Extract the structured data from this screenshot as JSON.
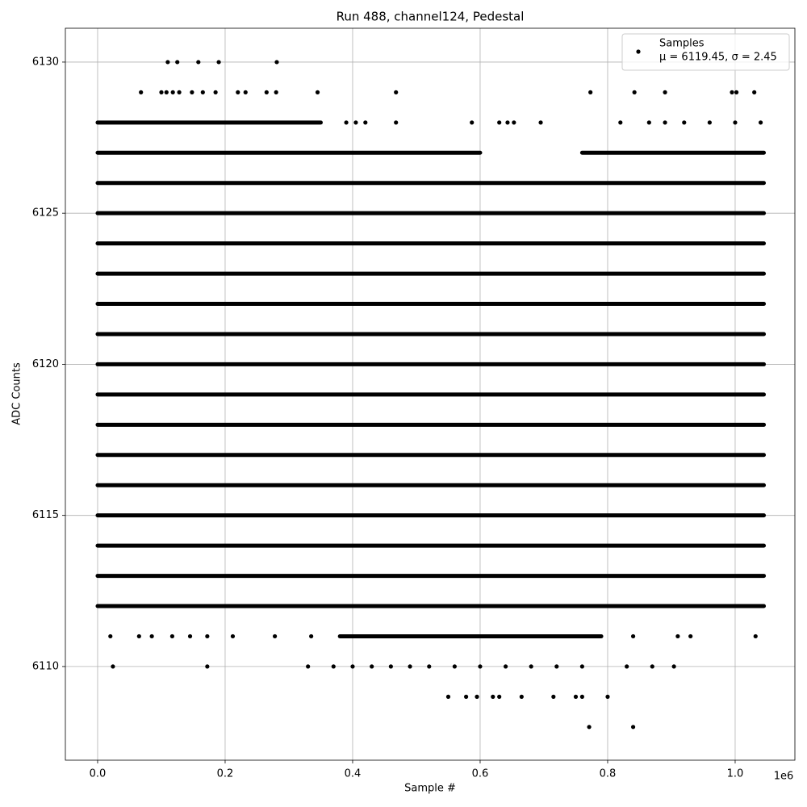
{
  "chart_data": {
    "type": "scatter",
    "title": "Run 488, channel124, Pedestal",
    "x_label": "Sample #",
    "y_label": "ADC Counts",
    "x_offset_label": "1e6",
    "xlim": [
      -50600,
      1093700
    ],
    "ylim": [
      6106.9,
      6131.12
    ],
    "xticks": [
      {
        "value": 0,
        "label": "0.0"
      },
      {
        "value": 200000,
        "label": "0.2"
      },
      {
        "value": 400000,
        "label": "0.4"
      },
      {
        "value": 600000,
        "label": "0.6"
      },
      {
        "value": 800000,
        "label": "0.8"
      },
      {
        "value": 1000000,
        "label": "1.0"
      }
    ],
    "yticks": [
      6110,
      6115,
      6120,
      6125,
      6130
    ],
    "grid": true,
    "legend": "upper right",
    "series": [
      {
        "name": "Samples",
        "legend_note": "μ = 6119.45, σ = 2.45",
        "color": "#000000",
        "row_segments": [
          {
            "y": 6112,
            "x": [
              0,
              1045000
            ]
          },
          {
            "y": 6113,
            "x": [
              0,
              1045000
            ]
          },
          {
            "y": 6114,
            "x": [
              0,
              1045000
            ]
          },
          {
            "y": 6115,
            "x": [
              0,
              1045000
            ]
          },
          {
            "y": 6116,
            "x": [
              0,
              1045000
            ]
          },
          {
            "y": 6117,
            "x": [
              0,
              1045000
            ]
          },
          {
            "y": 6118,
            "x": [
              0,
              1045000
            ]
          },
          {
            "y": 6119,
            "x": [
              0,
              1045000
            ]
          },
          {
            "y": 6120,
            "x": [
              0,
              1045000
            ]
          },
          {
            "y": 6121,
            "x": [
              0,
              1045000
            ]
          },
          {
            "y": 6122,
            "x": [
              0,
              1045000
            ]
          },
          {
            "y": 6123,
            "x": [
              0,
              1045000
            ]
          },
          {
            "y": 6124,
            "x": [
              0,
              1045000
            ]
          },
          {
            "y": 6125,
            "x": [
              0,
              1045000
            ]
          },
          {
            "y": 6126,
            "x": [
              0,
              1045000
            ]
          },
          {
            "y": 6127,
            "x": [
              0,
              600000
            ]
          },
          {
            "y": 6127,
            "x": [
              760000,
              1045000
            ]
          },
          {
            "y": 6128,
            "x": [
              0,
              350000
            ]
          },
          {
            "y": 6111,
            "x": [
              380000,
              790000
            ]
          }
        ],
        "x": [
          110000,
          125000,
          158000,
          190000,
          281000,
          68000,
          100000,
          108000,
          118000,
          128000,
          148000,
          165000,
          185000,
          220000,
          232000,
          265000,
          280000,
          345000,
          468000,
          773000,
          842000,
          890000,
          995000,
          1002000,
          1030000,
          390000,
          405000,
          420000,
          468000,
          587000,
          630000,
          643000,
          653000,
          695000,
          820000,
          865000,
          890000,
          920000,
          960000,
          1000000,
          1040000,
          20000,
          65000,
          85000,
          117000,
          145000,
          172000,
          212000,
          278000,
          335000,
          840000,
          910000,
          930000,
          1032000,
          24000,
          172000,
          330000,
          370000,
          400000,
          430000,
          460000,
          490000,
          520000,
          560000,
          600000,
          640000,
          680000,
          720000,
          760000,
          830000,
          870000,
          904000,
          550000,
          578000,
          595000,
          620000,
          630000,
          665000,
          715000,
          750000,
          760000,
          800000,
          771000,
          840000
        ],
        "y": [
          6130,
          6130,
          6130,
          6130,
          6130,
          6129,
          6129,
          6129,
          6129,
          6129,
          6129,
          6129,
          6129,
          6129,
          6129,
          6129,
          6129,
          6129,
          6129,
          6129,
          6129,
          6129,
          6129,
          6129,
          6129,
          6128,
          6128,
          6128,
          6128,
          6128,
          6128,
          6128,
          6128,
          6128,
          6128,
          6128,
          6128,
          6128,
          6128,
          6128,
          6128,
          6111,
          6111,
          6111,
          6111,
          6111,
          6111,
          6111,
          6111,
          6111,
          6111,
          6111,
          6111,
          6111,
          6110,
          6110,
          6110,
          6110,
          6110,
          6110,
          6110,
          6110,
          6110,
          6110,
          6110,
          6110,
          6110,
          6110,
          6110,
          6110,
          6110,
          6110,
          6109,
          6109,
          6109,
          6109,
          6109,
          6109,
          6109,
          6109,
          6109,
          6109,
          6108,
          6108
        ]
      }
    ]
  }
}
